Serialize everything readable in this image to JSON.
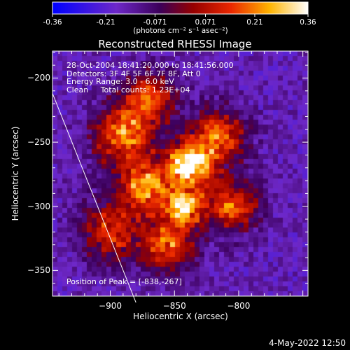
{
  "chart_data": {
    "type": "heatmap",
    "title": "Reconstructed RHESSI Image",
    "xlabel": "Heliocentric X (arcsec)",
    "ylabel": "Heliocentric Y (arcsec)",
    "xlim": [
      -945,
      -746
    ],
    "ylim": [
      -370,
      -179
    ],
    "x_ticks": [
      -900,
      -850,
      -800
    ],
    "y_ticks": [
      -200,
      -250,
      -300,
      -350
    ],
    "colorbar": {
      "min": -0.36,
      "max": 0.36,
      "ticks": [
        "-0.36",
        "-0.21",
        "-0.071",
        "0.071",
        "0.21",
        "0.36"
      ],
      "unit_label": "(photons cm⁻² s⁻¹ asec⁻²)"
    },
    "peak_position": [
      -838,
      -267
    ],
    "peak_value": 0.36,
    "sources": [
      {
        "x": -838,
        "y": -267,
        "amp": 0.36,
        "sigma": 12
      },
      {
        "x": -842,
        "y": -300,
        "amp": 0.25,
        "sigma": 10
      },
      {
        "x": -872,
        "y": -285,
        "amp": 0.2,
        "sigma": 14
      },
      {
        "x": -890,
        "y": -245,
        "amp": 0.18,
        "sigma": 16
      },
      {
        "x": -815,
        "y": -245,
        "amp": 0.17,
        "sigma": 14
      },
      {
        "x": -870,
        "y": -215,
        "amp": 0.14,
        "sigma": 14
      },
      {
        "x": -855,
        "y": -330,
        "amp": 0.16,
        "sigma": 14
      },
      {
        "x": -805,
        "y": -300,
        "amp": 0.15,
        "sigma": 14
      },
      {
        "x": -900,
        "y": -320,
        "amp": 0.12,
        "sigma": 16
      }
    ]
  },
  "info": {
    "line1": "28-Oct-2004 18:41:20.000 to 18:41:56.000",
    "line2": "Detectors: 3F 4F 5F 6F 7F 8F, Att 0",
    "line3": "Energy Range: 3.0 - 6.0 keV",
    "line4": "Clean     Total counts: 1.23E+04"
  },
  "peak_label": "Position of Peak = [-838,-267]",
  "timestamp": "4-May-2022 12:50"
}
